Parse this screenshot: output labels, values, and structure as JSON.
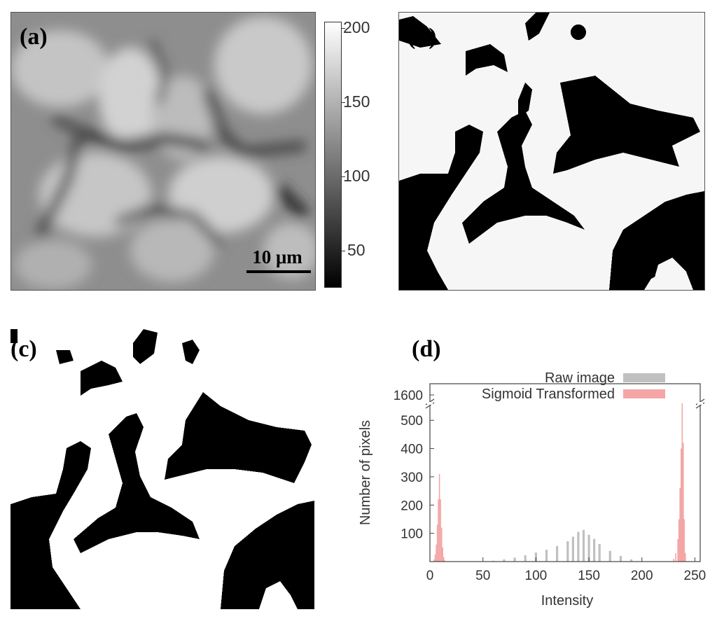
{
  "panels": {
    "a": {
      "label": "(a)",
      "scalebar": "10 μm"
    },
    "b": {
      "label": "(b)"
    },
    "c": {
      "label": "(c)"
    },
    "d": {
      "label": "(d)"
    }
  },
  "colorbar_ticks": [
    "200",
    "150",
    "100",
    "50"
  ],
  "chart_data": {
    "type": "bar",
    "xlabel": "Intensity",
    "ylabel": "Number of pixels",
    "xlim": [
      0,
      255
    ],
    "ylim": [
      0,
      560
    ],
    "y_break": {
      "above": 1600
    },
    "xticks": [
      "0",
      "50",
      "100",
      "150",
      "200",
      "250"
    ],
    "yticks": [
      "100",
      "200",
      "300",
      "400",
      "500",
      "1600"
    ],
    "legend_position": "top-right",
    "series": [
      {
        "name": "Raw image",
        "color": "#c0c0c0",
        "x": [
          60,
          70,
          80,
          90,
          100,
          110,
          120,
          130,
          135,
          140,
          145,
          150,
          155,
          160,
          170,
          180,
          190,
          200
        ],
        "values": [
          3,
          8,
          14,
          22,
          32,
          42,
          55,
          72,
          88,
          105,
          112,
          95,
          80,
          62,
          38,
          20,
          8,
          2
        ]
      },
      {
        "name": "Sigmoid Transformed",
        "color": "#f4a6a6",
        "x": [
          4,
          5,
          6,
          7,
          8,
          9,
          10,
          11,
          12,
          13,
          14,
          230,
          232,
          234,
          235,
          236,
          237,
          238,
          239,
          240,
          241
        ],
        "values": [
          8,
          25,
          60,
          130,
          220,
          310,
          220,
          120,
          50,
          15,
          4,
          10,
          30,
          80,
          150,
          260,
          400,
          560,
          420,
          150,
          30
        ]
      }
    ]
  }
}
